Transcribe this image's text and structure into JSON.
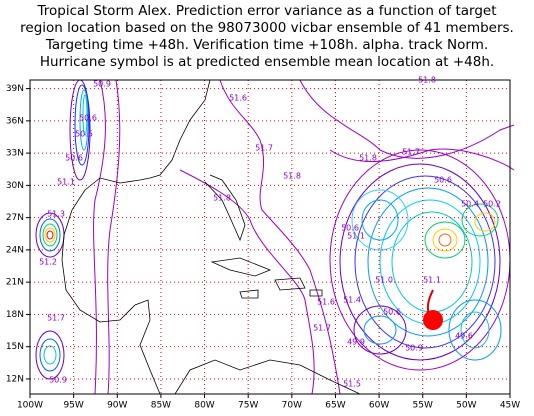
{
  "chart_data": {
    "type": "contour-map",
    "title": [
      "Tropical Storm Alex. Prediction error variance as a function of target",
      "region location based on the 98073000 vicbar ensemble of 41 members.",
      "Targeting time +48h. Verification time +108h. alpha. track Norm.",
      "Hurricane symbol is at predicted ensemble mean location at +48h."
    ],
    "xlim": [
      -100,
      -45
    ],
    "ylim": [
      10.6,
      39.8
    ],
    "xticks": [
      {
        "value": -100,
        "label": "100W"
      },
      {
        "value": -95,
        "label": "95W"
      },
      {
        "value": -90,
        "label": "90W"
      },
      {
        "value": -85,
        "label": "85W"
      },
      {
        "value": -80,
        "label": "80W"
      },
      {
        "value": -75,
        "label": "75W"
      },
      {
        "value": -70,
        "label": "70W"
      },
      {
        "value": -65,
        "label": "65W"
      },
      {
        "value": -60,
        "label": "60W"
      },
      {
        "value": -55,
        "label": "55W"
      },
      {
        "value": -50,
        "label": "50W"
      },
      {
        "value": -45,
        "label": "45W"
      }
    ],
    "yticks": [
      {
        "value": 12,
        "label": "12N"
      },
      {
        "value": 15,
        "label": "15N"
      },
      {
        "value": 18,
        "label": "18N"
      },
      {
        "value": 21,
        "label": "21N"
      },
      {
        "value": 24,
        "label": "24N"
      },
      {
        "value": 27,
        "label": "27N"
      },
      {
        "value": 30,
        "label": "30N"
      },
      {
        "value": 33,
        "label": "33N"
      },
      {
        "value": 36,
        "label": "36N"
      },
      {
        "value": 39,
        "label": "39N"
      }
    ],
    "grid": true,
    "contour_labels": [
      "51.6",
      "51.7",
      "51.8",
      "51.8",
      "51.8",
      "51.7",
      "51.8",
      "50.6",
      "50.4",
      "50.2",
      "51.1",
      "50.6",
      "50.9",
      "50.6",
      "50.5",
      "50.6",
      "51.1",
      "51.3",
      "51.2",
      "51.7",
      "50.9",
      "51.7",
      "51.6",
      "51.4",
      "50.6",
      "49.9",
      "50.9",
      "51.5",
      "49.6",
      "51.1",
      "51.0"
    ]
  }
}
